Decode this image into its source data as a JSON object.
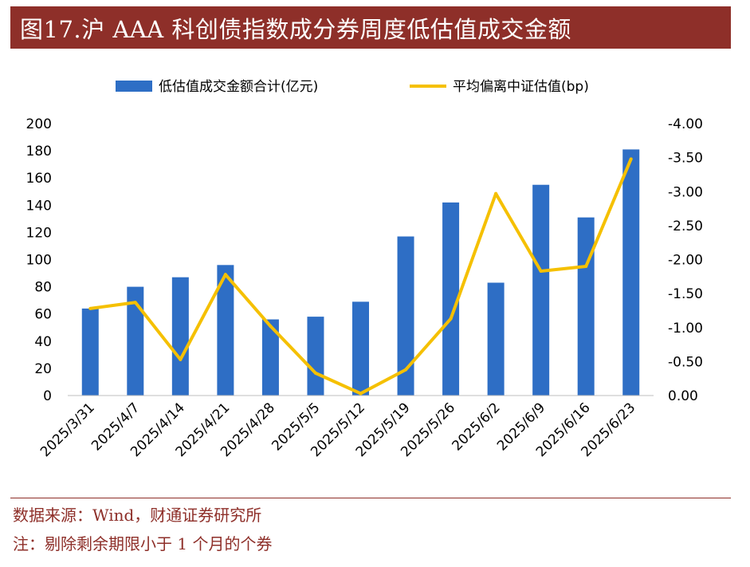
{
  "title": "图17.沪 AAA 科创债指数成分券周度低估值成交金额",
  "source": "数据来源：Wind，财通证券研究所",
  "note": "注：剔除剩余期限小于 1 个月的个券",
  "colors": {
    "bar": "#2e6ec5",
    "line": "#f5c000",
    "title_bg": "#8e2f29"
  },
  "chart_data": {
    "type": "bar",
    "categories": [
      "2025/3/31",
      "2025/4/7",
      "2025/4/14",
      "2025/4/21",
      "2025/4/28",
      "2025/5/5",
      "2025/5/12",
      "2025/5/19",
      "2025/5/26",
      "2025/6/2",
      "2025/6/9",
      "2025/6/16",
      "2025/6/23"
    ],
    "series": [
      {
        "name": "低估值成交金额合计(亿元)",
        "type": "bar",
        "axis": "left",
        "values": [
          64,
          80,
          87,
          96,
          56,
          58,
          69,
          117,
          142,
          83,
          155,
          131,
          181
        ]
      },
      {
        "name": "平均偏离中证估值(bp)",
        "type": "line",
        "axis": "right",
        "values": [
          -1.28,
          -1.37,
          -0.53,
          -1.78,
          -1.02,
          -0.33,
          -0.03,
          -0.38,
          -1.13,
          -2.97,
          -1.83,
          -1.9,
          -3.48
        ]
      }
    ],
    "y_left": {
      "range": [
        0,
        200
      ],
      "ticks": [
        "200",
        "180",
        "160",
        "140",
        "120",
        "100",
        "80",
        "60",
        "40",
        "20",
        "0"
      ]
    },
    "y_right": {
      "range": [
        0,
        -4
      ],
      "reversed": true,
      "ticks": [
        "-4.00",
        "-3.50",
        "-3.00",
        "-2.50",
        "-2.00",
        "-1.50",
        "-1.00",
        "-0.50",
        "0.00"
      ]
    },
    "legend": "top-center",
    "grid": false
  }
}
